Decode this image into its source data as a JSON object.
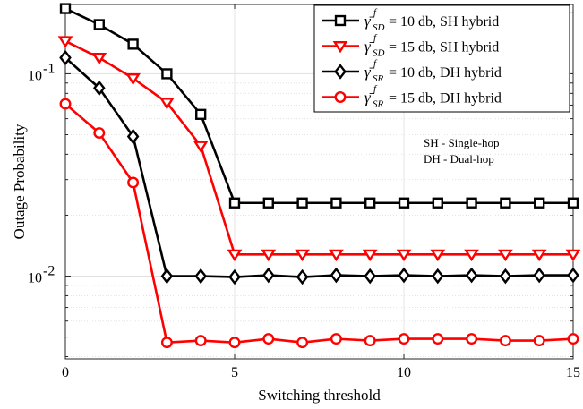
{
  "chart_data": {
    "type": "line",
    "xlabel": "Switching threshold",
    "ylabel": "Outage Probability",
    "yscale": "log",
    "xlim": [
      0,
      15
    ],
    "ylim": [
      0.0039,
      0.22
    ],
    "x_ticks": [
      "0",
      "5",
      "10",
      "15"
    ],
    "y_ticks": [
      {
        "base": "10",
        "exp": "-2",
        "value": 0.01
      },
      {
        "base": "10",
        "exp": "-1",
        "value": 0.1
      }
    ],
    "grid": true,
    "legend_position": "top-right",
    "x": [
      0,
      1,
      2,
      3,
      4,
      5,
      6,
      7,
      8,
      9,
      10,
      11,
      12,
      13,
      14,
      15
    ],
    "series": [
      {
        "label_symbol": "γ̄",
        "label_sup": "f",
        "label_sub": "SD",
        "label_text": " = 10 db, SH hybrid",
        "color": "#000000",
        "marker": "square",
        "values": [
          0.21,
          0.175,
          0.14,
          0.1,
          0.063,
          0.023,
          0.023,
          0.023,
          0.023,
          0.023,
          0.023,
          0.023,
          0.023,
          0.023,
          0.023,
          0.023
        ]
      },
      {
        "label_symbol": "γ̄",
        "label_sup": "f",
        "label_sub": "SD",
        "label_text": " = 15 db, SH hybrid",
        "color": "#ff0000",
        "marker": "triangle-down",
        "values": [
          0.145,
          0.12,
          0.095,
          0.072,
          0.044,
          0.0128,
          0.0128,
          0.0128,
          0.0128,
          0.0128,
          0.0128,
          0.0128,
          0.0128,
          0.0128,
          0.0128,
          0.0128
        ]
      },
      {
        "label_symbol": "γ̄",
        "label_sup": "f",
        "label_sub": "SR",
        "label_text": " = 10 db, DH hybrid",
        "color": "#000000",
        "marker": "diamond",
        "values": [
          0.12,
          0.085,
          0.049,
          0.01,
          0.01,
          0.0099,
          0.0101,
          0.0099,
          0.0101,
          0.01,
          0.0101,
          0.01,
          0.0101,
          0.01,
          0.0101,
          0.0101
        ]
      },
      {
        "label_symbol": "γ̄",
        "label_sup": "f",
        "label_sub": "SR",
        "label_text": " = 15 db, DH hybrid",
        "color": "#ff0000",
        "marker": "circle",
        "values": [
          0.071,
          0.051,
          0.029,
          0.0047,
          0.0048,
          0.0047,
          0.0049,
          0.0047,
          0.0049,
          0.0048,
          0.0049,
          0.0049,
          0.0049,
          0.0048,
          0.0048,
          0.0049
        ]
      }
    ],
    "annotations": [
      "SH - Single-hop",
      "DH - Dual-hop"
    ]
  }
}
